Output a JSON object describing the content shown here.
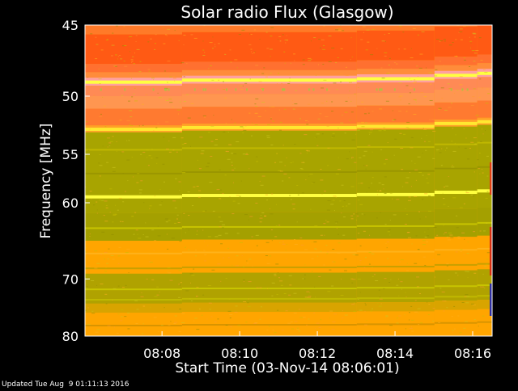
{
  "chart_data": {
    "type": "heatmap",
    "title": "Solar radio Flux (Glasgow)",
    "ylabel": "Frequency [MHz]",
    "xlabel": "Start Time (03-Nov-14 08:06:01)",
    "footer": "Updated Tue Aug  9 01:11:13 2016",
    "xlim": [
      "08:06:01",
      "08:16:30"
    ],
    "x_ticks": [
      "08:08",
      "08:10",
      "08:12",
      "08:14",
      "08:16"
    ],
    "x_tick_minutes": [
      8,
      10,
      12,
      14,
      16
    ],
    "ylim": [
      45,
      80
    ],
    "y_scale": "reciprocal",
    "y_ticks": [
      45,
      50,
      55,
      60,
      70,
      80
    ],
    "colors": {
      "background": "#000000",
      "hot": "#ff5a14",
      "mid": "#ffa500",
      "quiet": "#a8a400",
      "line": "#ffff40"
    },
    "segment_start_minutes": [
      0,
      2.5,
      7,
      9,
      10.1
    ],
    "segment_offset_mhz": [
      0,
      -0.15,
      -0.25,
      -0.5,
      -0.65
    ],
    "bands": [
      {
        "from": 45,
        "to": 45.6,
        "color": "#ff7a28"
      },
      {
        "from": 45.6,
        "to": 47.6,
        "color": "#ff5a14"
      },
      {
        "from": 47.6,
        "to": 48.2,
        "color": "#ff7030"
      },
      {
        "from": 48.2,
        "to": 48.6,
        "color": "#ff8c3a"
      },
      {
        "from": 48.6,
        "to": 49.2,
        "color": "#ffa0a0"
      },
      {
        "from": 49.2,
        "to": 50.0,
        "color": "#ff8a55"
      },
      {
        "from": 50.0,
        "to": 51.0,
        "color": "#ff9650"
      },
      {
        "from": 51.0,
        "to": 52.4,
        "color": "#ff7a30"
      },
      {
        "from": 52.4,
        "to": 53.0,
        "color": "#ffa028"
      },
      {
        "from": 53.0,
        "to": 61.2,
        "color": "#a8a400"
      },
      {
        "from": 61.2,
        "to": 64.6,
        "color": "#a4a000"
      },
      {
        "from": 64.6,
        "to": 69.2,
        "color": "#ffa500"
      },
      {
        "from": 69.2,
        "to": 74.0,
        "color": "#b0a200"
      },
      {
        "from": 74.0,
        "to": 75.6,
        "color": "#d8a400"
      },
      {
        "from": 75.6,
        "to": 80,
        "color": "#ffa500"
      }
    ],
    "bright_lines": [
      {
        "freq": 48.9,
        "color": "#ffff40"
      },
      {
        "freq": 52.7,
        "color": "#ffe830"
      },
      {
        "freq": 59.3,
        "color": "#ffff40"
      }
    ],
    "fine_lines": [
      {
        "freq": 54.5,
        "color": "#c0b800"
      },
      {
        "freq": 56.8,
        "color": "#9a9600"
      },
      {
        "freq": 62.9,
        "color": "#c8c400"
      },
      {
        "freq": 66.2,
        "color": "#ffb21a"
      },
      {
        "freq": 68.3,
        "color": "#c8a000"
      },
      {
        "freq": 71.5,
        "color": "#c8c400"
      },
      {
        "freq": 73.2,
        "color": "#c0b800"
      },
      {
        "freq": 77.8,
        "color": "#d89400"
      }
    ]
  }
}
